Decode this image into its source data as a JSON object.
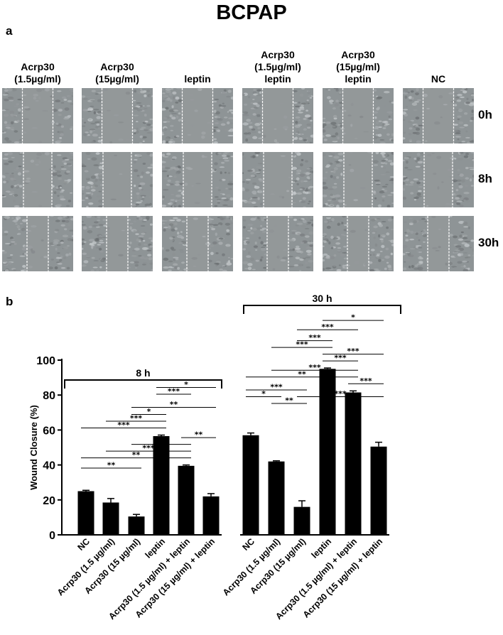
{
  "figure": {
    "title": "BCPAP",
    "panel_a_label": "a",
    "panel_b_label": "b"
  },
  "microscopy": {
    "columns": [
      {
        "lines": [
          "Acrp30",
          "(1.5µg/ml)"
        ]
      },
      {
        "lines": [
          "Acrp30",
          "(15µg/ml)"
        ]
      },
      {
        "lines": [
          "leptin"
        ]
      },
      {
        "lines": [
          "Acrp30",
          "(1.5µg/ml)",
          "leptin"
        ]
      },
      {
        "lines": [
          "Acrp30",
          "(15µg/ml)",
          "leptin"
        ]
      },
      {
        "lines": [
          "NC"
        ]
      }
    ],
    "rows": [
      "0h",
      "8h",
      "30h"
    ],
    "tile_color": "#8e9496"
  },
  "chart_data": {
    "type": "bar",
    "ylabel": "Wound Closure (%)",
    "ylim": [
      0,
      100
    ],
    "yticks": [
      0,
      20,
      40,
      60,
      80,
      100
    ],
    "categories": [
      "NC",
      "Acrp30 (1.5 µg/ml)",
      "Acrp30 (15 µg/ml)",
      "leptin",
      "Acrp30 (1.5 µg/ml) + leptin",
      "Acrp30 (15 µg/ml) + leptin"
    ],
    "bar_color": "#000000",
    "groups": [
      {
        "name": "8 h",
        "values": [
          25,
          18.5,
          10.5,
          56.5,
          39.5,
          22
        ],
        "errors": [
          0.5,
          2.3,
          1.2,
          0.6,
          0.5,
          1.6
        ],
        "significance": [
          {
            "a": 0,
            "b": 2,
            "label": "**"
          },
          {
            "a": 0,
            "b": 4,
            "label": "**"
          },
          {
            "a": 0,
            "b": 3,
            "label": "***"
          },
          {
            "a": 1,
            "b": 3,
            "label": "***"
          },
          {
            "a": 1,
            "b": 4,
            "label": "***"
          },
          {
            "a": 2,
            "b": 3,
            "label": "*"
          },
          {
            "a": 2,
            "b": 4,
            "label": "***"
          },
          {
            "a": 2,
            "b": 5,
            "label": "**"
          },
          {
            "a": 3,
            "b": 4,
            "label": "***"
          },
          {
            "a": 3,
            "b": 5,
            "label": "*"
          },
          {
            "a": 4,
            "b": 5,
            "label": "**"
          }
        ]
      },
      {
        "name": "30 h",
        "values": [
          57,
          42,
          16,
          95,
          81.5,
          50.5
        ],
        "errors": [
          1.3,
          0.4,
          3.5,
          0.5,
          0.9,
          2.5
        ],
        "significance": [
          {
            "a": 1,
            "b": 2,
            "label": "**"
          },
          {
            "a": 0,
            "b": 1,
            "label": "*"
          },
          {
            "a": 0,
            "b": 2,
            "label": "***"
          },
          {
            "a": 3,
            "b": 4,
            "label": "***"
          },
          {
            "a": 3,
            "b": 5,
            "label": "***"
          },
          {
            "a": 4,
            "b": 5,
            "label": "***"
          },
          {
            "a": 0,
            "b": 4,
            "label": "**"
          },
          {
            "a": 1,
            "b": 3,
            "label": "***"
          },
          {
            "a": 1,
            "b": 4,
            "label": "***"
          },
          {
            "a": 2,
            "b": 3,
            "label": "***"
          },
          {
            "a": 2,
            "b": 4,
            "label": "***"
          },
          {
            "a": 2,
            "b": 5,
            "label": "***"
          },
          {
            "a": 3,
            "b": 5,
            "label": "*"
          }
        ]
      }
    ]
  }
}
